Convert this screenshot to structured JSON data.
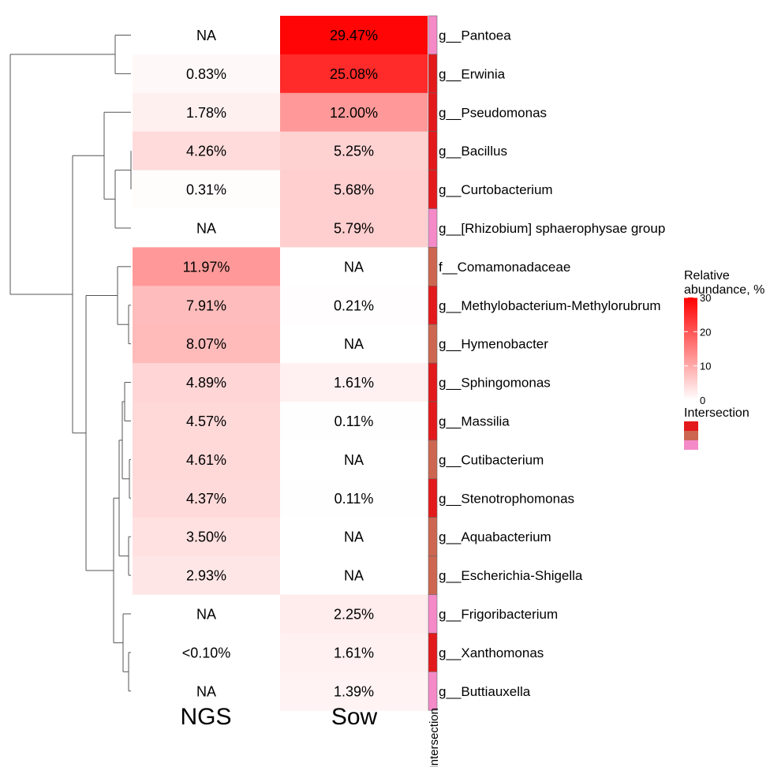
{
  "chart_data": {
    "type": "heatmap",
    "columns": [
      "NGS",
      "Sow"
    ],
    "annotation_column_label": "Intersection",
    "rows": [
      {
        "label": "g__Pantoea",
        "NGS": null,
        "Sow": 29.47,
        "NGS_text": "NA",
        "Sow_text": "29.47%",
        "group": 2
      },
      {
        "label": "g__Erwinia",
        "NGS": 0.83,
        "Sow": 25.08,
        "NGS_text": "0.83%",
        "Sow_text": "25.08%",
        "group": 0
      },
      {
        "label": "g__Pseudomonas",
        "NGS": 1.78,
        "Sow": 12.0,
        "NGS_text": "1.78%",
        "Sow_text": "12.00%",
        "group": 0
      },
      {
        "label": "g__Bacillus",
        "NGS": 4.26,
        "Sow": 5.25,
        "NGS_text": "4.26%",
        "Sow_text": "5.25%",
        "group": 0
      },
      {
        "label": "g__Curtobacterium",
        "NGS": 0.31,
        "Sow": 5.68,
        "NGS_text": "0.31%",
        "Sow_text": "5.68%",
        "group": 0
      },
      {
        "label": "g__[Rhizobium] sphaerophysae group",
        "NGS": null,
        "Sow": 5.79,
        "NGS_text": "NA",
        "Sow_text": "5.79%",
        "group": 2
      },
      {
        "label": "f__Comamonadaceae",
        "NGS": 11.97,
        "Sow": null,
        "NGS_text": "11.97%",
        "Sow_text": "NA",
        "group": 1
      },
      {
        "label": "g__Methylobacterium-Methylorubrum",
        "NGS": 7.91,
        "Sow": 0.21,
        "NGS_text": "7.91%",
        "Sow_text": "0.21%",
        "group": 0
      },
      {
        "label": "g__Hymenobacter",
        "NGS": 8.07,
        "Sow": null,
        "NGS_text": "8.07%",
        "Sow_text": "NA",
        "group": 1
      },
      {
        "label": "g__Sphingomonas",
        "NGS": 4.89,
        "Sow": 1.61,
        "NGS_text": "4.89%",
        "Sow_text": "1.61%",
        "group": 0
      },
      {
        "label": "g__Massilia",
        "NGS": 4.57,
        "Sow": 0.11,
        "NGS_text": "4.57%",
        "Sow_text": "0.11%",
        "group": 0
      },
      {
        "label": "g__Cutibacterium",
        "NGS": 4.61,
        "Sow": null,
        "NGS_text": "4.61%",
        "Sow_text": "NA",
        "group": 1
      },
      {
        "label": "g__Stenotrophomonas",
        "NGS": 4.37,
        "Sow": 0.11,
        "NGS_text": "4.37%",
        "Sow_text": "0.11%",
        "group": 0
      },
      {
        "label": "g__Aquabacterium",
        "NGS": 3.5,
        "Sow": null,
        "NGS_text": "3.50%",
        "Sow_text": "NA",
        "group": 1
      },
      {
        "label": "g__Escherichia-Shigella",
        "NGS": 2.93,
        "Sow": null,
        "NGS_text": "2.93%",
        "Sow_text": "NA",
        "group": 1
      },
      {
        "label": "g__Frigoribacterium",
        "NGS": null,
        "Sow": 2.25,
        "NGS_text": "NA",
        "Sow_text": "2.25%",
        "group": 2
      },
      {
        "label": "g__Xanthomonas",
        "NGS": 0.05,
        "Sow": 1.61,
        "NGS_text": "<0.10%",
        "Sow_text": "1.61%",
        "group": 0
      },
      {
        "label": "g__Buttiauxella",
        "NGS": null,
        "Sow": 1.39,
        "NGS_text": "NA",
        "Sow_text": "1.39%",
        "group": 2
      }
    ],
    "color_scale": {
      "min": 0,
      "max": 30,
      "low_color": "#ffffff",
      "high_color": "#ff0000",
      "na_color": "#ffffff"
    },
    "legend": {
      "abundance_title_line1": "Relative",
      "abundance_title_line2": "abundance, %",
      "ticks": [
        0,
        10,
        20,
        30
      ],
      "intersection_title": "Intersection",
      "intersection_colors": [
        "#e31a1c",
        "#cd6650",
        "#f48ac8"
      ],
      "placement": "right"
    },
    "intersection_colors": [
      "#e31a1c",
      "#cd6650",
      "#f48ac8"
    ]
  }
}
